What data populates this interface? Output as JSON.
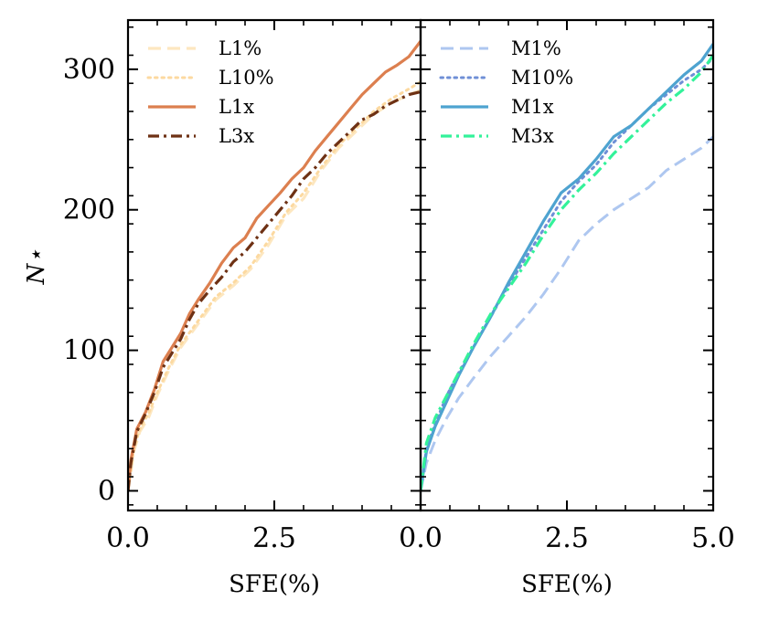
{
  "chart_data": [
    {
      "type": "line",
      "panel": "left",
      "xlabel": "SFE(%)",
      "ylabel": "N⋆",
      "xlim": [
        0,
        5.0
      ],
      "ylim": [
        -14,
        335
      ],
      "xticks": [
        0.0,
        2.5
      ],
      "xtick_labels": [
        "0.0",
        "2.5"
      ],
      "yticks": [
        0,
        100,
        200,
        300
      ],
      "ytick_labels": [
        "0",
        "100",
        "200",
        "300"
      ],
      "legend_position": "top-left",
      "series": [
        {
          "name": "L1%",
          "color": "#fde7c0",
          "style": "dashed",
          "width": 3.2,
          "x": [
            0,
            0.1,
            0.2,
            0.35,
            0.5,
            0.7,
            0.9,
            1.2,
            1.5,
            1.8,
            2.1,
            2.4,
            2.7,
            3.0,
            3.3,
            3.6,
            3.9,
            4.2,
            4.5,
            4.8,
            5.0
          ],
          "y": [
            0,
            28,
            42,
            52,
            68,
            86,
            102,
            119,
            136,
            146,
            158,
            175,
            196,
            208,
            228,
            244,
            256,
            268,
            276,
            282,
            285
          ]
        },
        {
          "name": "L10%",
          "color": "#fcd9a0",
          "style": "dotted",
          "width": 3,
          "x": [
            0,
            0.1,
            0.2,
            0.35,
            0.5,
            0.7,
            0.9,
            1.2,
            1.5,
            1.8,
            2.1,
            2.4,
            2.7,
            3.0,
            3.3,
            3.6,
            3.9,
            4.2,
            4.5,
            4.8,
            5.0
          ],
          "y": [
            0,
            30,
            44,
            55,
            70,
            88,
            104,
            121,
            138,
            148,
            160,
            178,
            198,
            212,
            230,
            246,
            258,
            270,
            279,
            286,
            291
          ]
        },
        {
          "name": "L1x",
          "color": "#dc7f4f",
          "style": "solid",
          "width": 3.2,
          "x": [
            0,
            0.05,
            0.15,
            0.3,
            0.45,
            0.6,
            0.75,
            0.9,
            1.05,
            1.2,
            1.4,
            1.6,
            1.8,
            2.0,
            2.2,
            2.4,
            2.6,
            2.8,
            3.0,
            3.2,
            3.4,
            3.6,
            3.8,
            4.0,
            4.2,
            4.4,
            4.6,
            4.8,
            5.0
          ],
          "y": [
            0,
            22,
            44,
            56,
            72,
            92,
            102,
            112,
            126,
            136,
            148,
            162,
            173,
            180,
            194,
            203,
            212,
            222,
            230,
            242,
            252,
            262,
            272,
            282,
            290,
            298,
            303,
            309,
            320
          ]
        },
        {
          "name": "L3x",
          "color": "#6e3114",
          "style": "dashdot",
          "width": 3.2,
          "x": [
            0,
            0.05,
            0.15,
            0.3,
            0.45,
            0.6,
            0.75,
            0.9,
            1.05,
            1.2,
            1.4,
            1.6,
            1.8,
            2.0,
            2.2,
            2.4,
            2.6,
            2.8,
            3.0,
            3.2,
            3.4,
            3.6,
            3.8,
            4.0,
            4.2,
            4.4,
            4.6,
            4.8,
            5.0
          ],
          "y": [
            0,
            20,
            42,
            55,
            70,
            88,
            98,
            108,
            122,
            133,
            143,
            152,
            163,
            170,
            180,
            190,
            200,
            210,
            222,
            230,
            240,
            248,
            256,
            264,
            268,
            274,
            278,
            282,
            284
          ]
        }
      ]
    },
    {
      "type": "line",
      "panel": "right",
      "xlabel": "SFE(%)",
      "xlim": [
        0,
        5.0
      ],
      "ylim": [
        -14,
        335
      ],
      "xticks": [
        0.0,
        2.5,
        5.0
      ],
      "xtick_labels": [
        "0.0",
        "2.5",
        "5.0"
      ],
      "legend_position": "top-left",
      "series": [
        {
          "name": "M1%",
          "color": "#aec7f0",
          "style": "dashed",
          "width": 3,
          "x": [
            0,
            0.1,
            0.25,
            0.45,
            0.65,
            0.9,
            1.2,
            1.5,
            1.8,
            2.1,
            2.4,
            2.7,
            3.0,
            3.3,
            3.6,
            3.9,
            4.2,
            4.5,
            4.8,
            5.0
          ],
          "y": [
            0,
            20,
            36,
            52,
            66,
            80,
            96,
            110,
            124,
            140,
            158,
            178,
            190,
            200,
            208,
            216,
            228,
            236,
            244,
            252
          ]
        },
        {
          "name": "M10%",
          "color": "#6f8fd6",
          "style": "dotted",
          "width": 3,
          "x": [
            0,
            0.1,
            0.25,
            0.45,
            0.65,
            0.9,
            1.2,
            1.5,
            1.8,
            2.1,
            2.4,
            2.7,
            3.0,
            3.3,
            3.6,
            3.9,
            4.2,
            4.5,
            4.8,
            5.0
          ],
          "y": [
            0,
            30,
            48,
            68,
            84,
            102,
            124,
            146,
            166,
            186,
            206,
            220,
            232,
            248,
            260,
            272,
            282,
            292,
            300,
            308
          ]
        },
        {
          "name": "M1x",
          "color": "#4ea3d0",
          "style": "solid",
          "width": 3.2,
          "x": [
            0,
            0.1,
            0.25,
            0.45,
            0.65,
            0.9,
            1.2,
            1.5,
            1.8,
            2.1,
            2.4,
            2.7,
            3.0,
            3.3,
            3.6,
            3.9,
            4.2,
            4.5,
            4.8,
            5.0
          ],
          "y": [
            0,
            28,
            46,
            64,
            82,
            102,
            124,
            148,
            170,
            192,
            212,
            222,
            236,
            252,
            260,
            272,
            284,
            296,
            306,
            318
          ]
        },
        {
          "name": "M3x",
          "color": "#33f29a",
          "style": "dashdot",
          "width": 3.2,
          "x": [
            0,
            0.1,
            0.25,
            0.45,
            0.65,
            0.9,
            1.2,
            1.5,
            1.8,
            2.1,
            2.4,
            2.7,
            3.0,
            3.3,
            3.6,
            3.9,
            4.2,
            4.5,
            4.8,
            5.0
          ],
          "y": [
            0,
            34,
            52,
            68,
            84,
            104,
            126,
            144,
            162,
            182,
            200,
            214,
            226,
            240,
            252,
            264,
            276,
            286,
            298,
            310
          ]
        }
      ]
    }
  ]
}
